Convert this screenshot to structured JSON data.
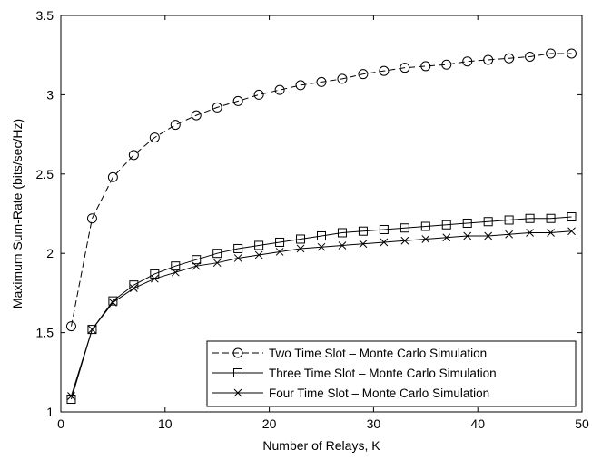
{
  "chart_data": {
    "type": "line",
    "title": "",
    "xlabel": "Number of Relays, K",
    "ylabel": "Maximum Sum-Rate (bits/sec/Hz)",
    "xlim": [
      0,
      50
    ],
    "ylim": [
      1,
      3.5
    ],
    "xticks": [
      0,
      10,
      20,
      30,
      40,
      50
    ],
    "yticks": [
      1,
      1.5,
      2,
      2.5,
      3,
      3.5
    ],
    "xtick_labels": [
      "0",
      "10",
      "20",
      "30",
      "40",
      "50"
    ],
    "ytick_labels": [
      "1",
      "1.5",
      "2",
      "2.5",
      "3",
      "3.5"
    ],
    "grid": false,
    "legend_position": "bottom-right",
    "x": [
      1,
      3,
      5,
      7,
      9,
      11,
      13,
      15,
      17,
      19,
      21,
      23,
      25,
      27,
      29,
      31,
      33,
      35,
      37,
      39,
      41,
      43,
      45,
      47,
      49
    ],
    "series": [
      {
        "name": "Two Time Slot – Monte Carlo Simulation",
        "marker": "circle",
        "line_style": "dashed",
        "color": "#000000",
        "values": [
          1.54,
          2.22,
          2.48,
          2.62,
          2.73,
          2.81,
          2.87,
          2.92,
          2.96,
          3.0,
          3.03,
          3.06,
          3.08,
          3.1,
          3.13,
          3.15,
          3.17,
          3.18,
          3.19,
          3.21,
          3.22,
          3.23,
          3.24,
          3.26,
          3.26
        ]
      },
      {
        "name": "Three Time Slot – Monte Carlo Simulation",
        "marker": "square",
        "line_style": "solid",
        "color": "#000000",
        "values": [
          1.08,
          1.52,
          1.7,
          1.8,
          1.87,
          1.92,
          1.96,
          2.0,
          2.03,
          2.05,
          2.07,
          2.09,
          2.11,
          2.13,
          2.14,
          2.15,
          2.16,
          2.17,
          2.18,
          2.19,
          2.2,
          2.21,
          2.22,
          2.22,
          2.23
        ]
      },
      {
        "name": "Four Time Slot – Monte Carlo Simulation",
        "marker": "x",
        "line_style": "solid",
        "color": "#000000",
        "values": [
          1.1,
          1.52,
          1.69,
          1.78,
          1.84,
          1.88,
          1.92,
          1.94,
          1.97,
          1.99,
          2.01,
          2.03,
          2.04,
          2.05,
          2.06,
          2.07,
          2.08,
          2.09,
          2.1,
          2.11,
          2.11,
          2.12,
          2.13,
          2.13,
          2.14
        ]
      }
    ]
  }
}
